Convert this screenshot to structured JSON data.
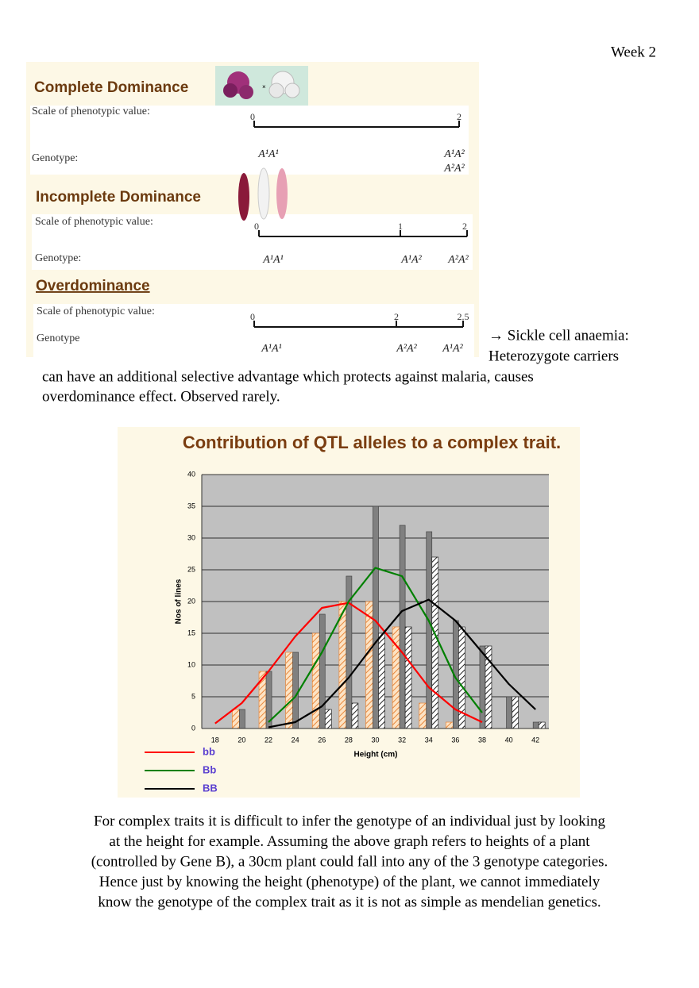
{
  "header": {
    "title": "Week 2"
  },
  "dominance": {
    "sections": [
      {
        "title": "Complete Dominance",
        "scale_label": "Scale of phenotypic value:",
        "genotype_label": "Genotype:",
        "scale": [
          "0",
          "2"
        ],
        "genotypes": [
          [
            "A¹A¹"
          ],
          [
            "A¹A²",
            "A²A²"
          ]
        ]
      },
      {
        "title": "Incomplete Dominance",
        "scale_label": "Scale of phenotypic value:",
        "genotype_label": "Genotype:",
        "scale": [
          "0",
          "1",
          "2"
        ],
        "genotypes": [
          [
            "A¹A¹"
          ],
          [
            "A¹A²"
          ],
          [
            "A²A²"
          ]
        ]
      },
      {
        "title": "Overdominance",
        "scale_label": "Scale of phenotypic value:",
        "genotype_label": "Genotype",
        "scale": [
          "0",
          "2",
          "2.5"
        ],
        "genotypes": [
          [
            "A¹A¹"
          ],
          [
            "A²A²"
          ],
          [
            "A¹A²"
          ]
        ]
      }
    ]
  },
  "note": [
    "→ Sickle cell anaemia:",
    "Heterozygote carriers",
    "can have an additional selective advantage which protects against malaria, causes",
    "overdominance effect. Observed rarely."
  ],
  "chart_data": {
    "type": "bar",
    "title": "Contribution of QTL alleles to a complex trait.",
    "x_label": "Height (cm)",
    "y_label": "Nos of lines",
    "categories": [
      18,
      20,
      22,
      24,
      26,
      28,
      30,
      32,
      34,
      36,
      38,
      40,
      42
    ],
    "ylim": [
      0,
      40
    ],
    "yticks": [
      0,
      5,
      10,
      15,
      20,
      25,
      30,
      35,
      40
    ],
    "grid": true,
    "bars": [
      {
        "color": "#e8873a",
        "hatched": true,
        "values": [
          0,
          3,
          9,
          12,
          15,
          20,
          20,
          16,
          4,
          1,
          0,
          0,
          0
        ]
      },
      {
        "color": "#808080",
        "hatched": false,
        "values": [
          0,
          3,
          9,
          12,
          18,
          24,
          35,
          32,
          31,
          17,
          13,
          5,
          1
        ]
      },
      {
        "color": "#222222",
        "hatched": true,
        "values": [
          0,
          0,
          0,
          0,
          3,
          4,
          15,
          16,
          27,
          16,
          13,
          5,
          1
        ]
      }
    ],
    "series": [
      {
        "name": "bb",
        "color": "#ff0000",
        "values": [
          0.8,
          4,
          9,
          14.5,
          19,
          19.8,
          17,
          12,
          6.5,
          3,
          1,
          null,
          null
        ]
      },
      {
        "name": "Bb",
        "color": "#008000",
        "values": [
          null,
          null,
          1,
          5,
          12,
          20,
          25.3,
          24,
          17,
          8,
          2.5,
          null,
          null
        ]
      },
      {
        "name": "BB",
        "color": "#000000",
        "values": [
          null,
          null,
          0.2,
          1,
          3.5,
          8,
          13.5,
          18.5,
          20.3,
          17,
          12,
          7,
          3
        ]
      }
    ]
  },
  "paragraph": [
    "For complex traits it is difficult to infer the genotype of an individual just by looking",
    "at the height for example. Assuming the above graph refers to heights of a plant",
    "(controlled by Gene B), a 30cm plant could fall into any of the 3 genotype categories.",
    "Hence just by knowing the height (phenotype) of the plant, we cannot immediately",
    "know the genotype of the complex trait as it is not as simple as mendelian genetics."
  ]
}
